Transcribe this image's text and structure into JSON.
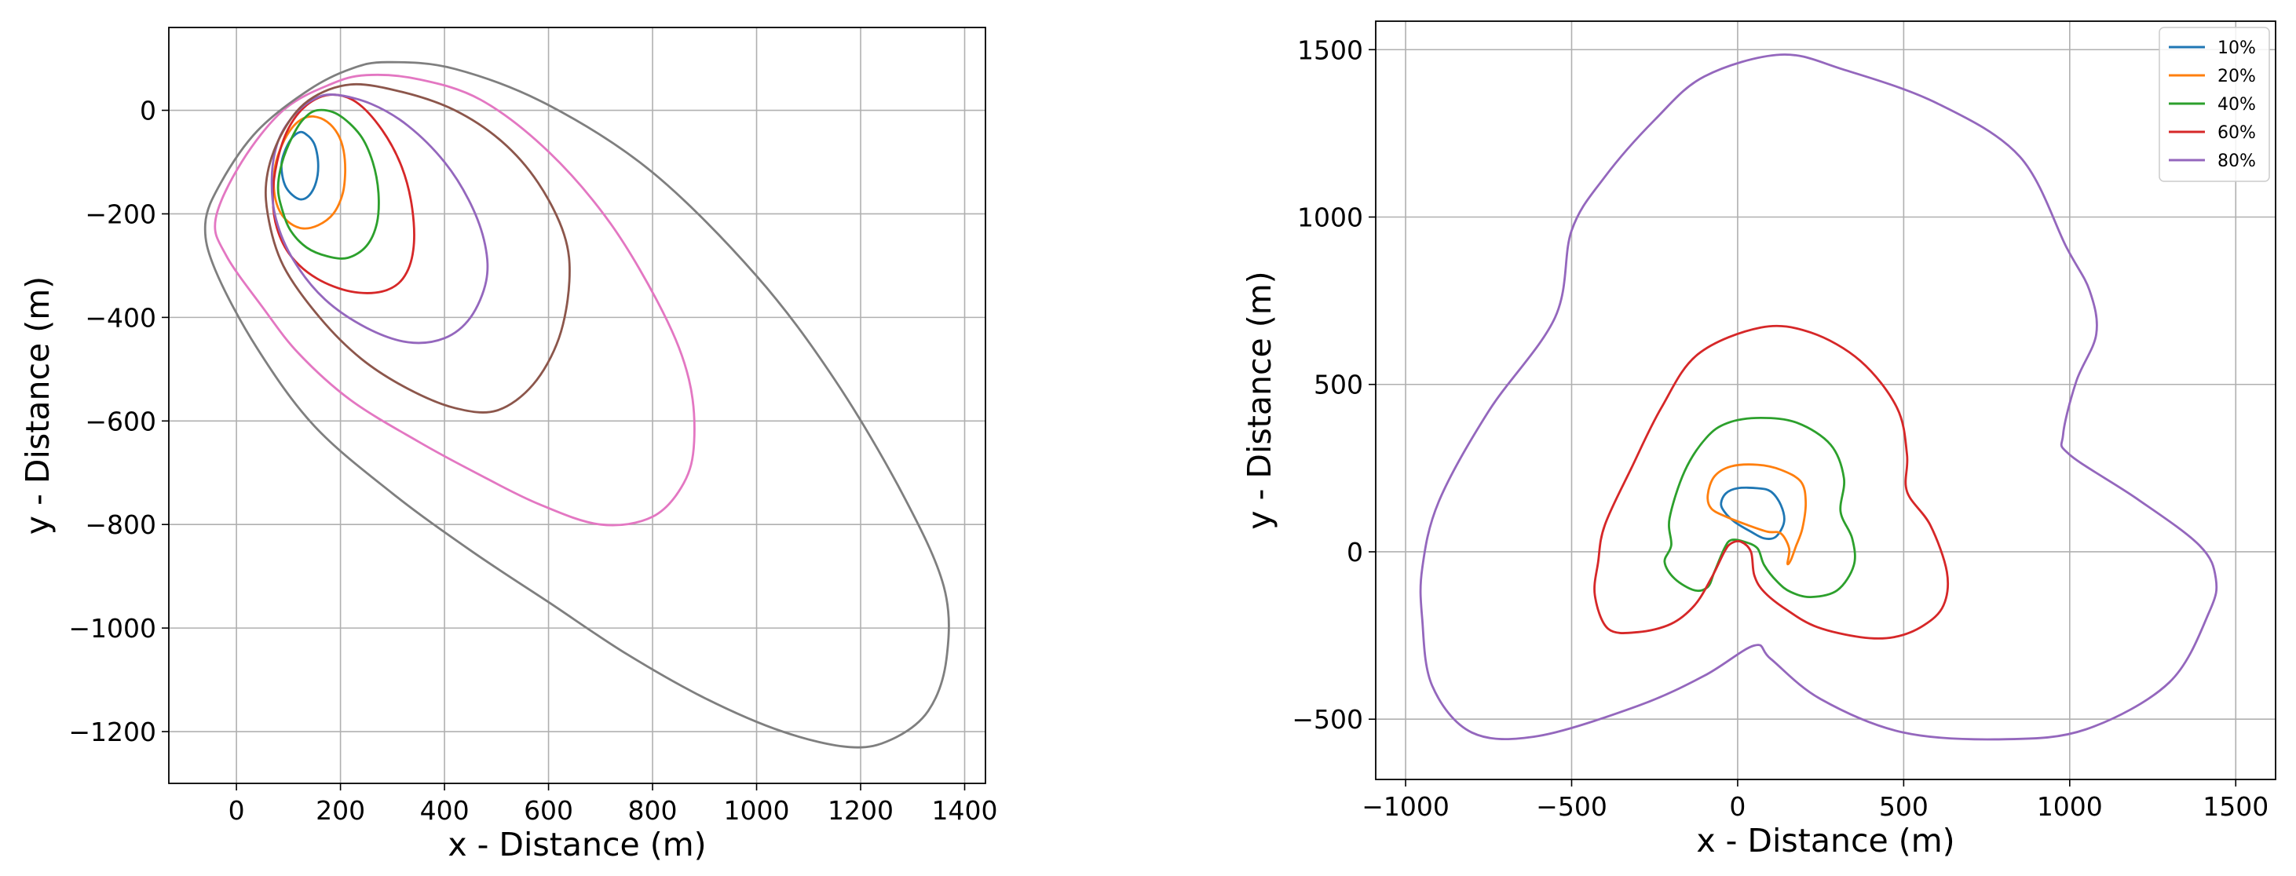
{
  "chart_data": [
    {
      "type": "line",
      "title": "",
      "xlabel": "x - Distance (m)",
      "ylabel": "y - Distance (m)",
      "xlim": [
        -130,
        1440
      ],
      "ylim": [
        -1300,
        160
      ],
      "xticks": [
        0,
        200,
        400,
        600,
        800,
        1000,
        1200,
        1400
      ],
      "yticks": [
        0,
        -200,
        -400,
        -600,
        -800,
        -1000,
        -1200
      ],
      "grid": true,
      "legend": "none",
      "series": [
        {
          "color": "#1f77b4",
          "x": [
            123,
            136,
            147,
            153,
            157,
            156,
            149,
            137,
            123,
            108,
            95,
            88,
            87,
            95,
            107,
            123
          ],
          "y": [
            -42,
            -48,
            -60,
            -75,
            -100,
            -125,
            -150,
            -167,
            -172,
            -164,
            -148,
            -125,
            -100,
            -74,
            -53,
            -42
          ]
        },
        {
          "color": "#ff7f0e",
          "x": [
            148,
            174,
            195,
            206,
            209,
            204,
            186,
            157,
            126,
            98,
            80,
            72,
            75,
            88,
            106,
            126,
            148
          ],
          "y": [
            -12,
            -22,
            -46,
            -78,
            -120,
            -162,
            -200,
            -222,
            -228,
            -214,
            -188,
            -150,
            -105,
            -66,
            -35,
            -17,
            -12
          ]
        },
        {
          "color": "#2ca02c",
          "x": [
            155,
            195,
            238,
            262,
            273,
            270,
            250,
            214,
            175,
            135,
            104,
            88,
            80,
            88,
            107,
            128,
            155
          ],
          "y": [
            0,
            -8,
            -48,
            -100,
            -160,
            -218,
            -262,
            -285,
            -282,
            -265,
            -232,
            -192,
            -150,
            -100,
            -52,
            -18,
            0
          ]
        },
        {
          "color": "#d62728",
          "x": [
            180,
            230,
            280,
            318,
            338,
            340,
            320,
            280,
            220,
            155,
            105,
            78,
            70,
            78,
            100,
            135,
            180
          ],
          "y": [
            30,
            16,
            -38,
            -110,
            -190,
            -270,
            -325,
            -350,
            -350,
            -325,
            -282,
            -228,
            -168,
            -100,
            -35,
            10,
            30
          ]
        },
        {
          "color": "#9467bd",
          "x": [
            190,
            260,
            330,
            400,
            450,
            478,
            480,
            450,
            400,
            330,
            250,
            170,
            110,
            76,
            68,
            80,
            110,
            150,
            190
          ],
          "y": [
            30,
            12,
            -30,
            -100,
            -180,
            -260,
            -330,
            -400,
            -440,
            -448,
            -420,
            -365,
            -290,
            -210,
            -130,
            -60,
            -10,
            22,
            30
          ]
        },
        {
          "color": "#8c564b",
          "x": [
            220,
            320,
            420,
            510,
            580,
            630,
            640,
            620,
            570,
            500,
            420,
            330,
            240,
            160,
            90,
            60,
            60,
            90,
            140,
            220
          ],
          "y": [
            50,
            35,
            0,
            -60,
            -140,
            -240,
            -330,
            -440,
            -530,
            -580,
            -575,
            -538,
            -480,
            -400,
            -300,
            -200,
            -120,
            -40,
            20,
            50
          ]
        },
        {
          "color": "#e377c2",
          "x": [
            250,
            350,
            470,
            600,
            720,
            820,
            870,
            880,
            860,
            800,
            700,
            580,
            460,
            350,
            220,
            120,
            50,
            -20,
            -40,
            10,
            90,
            180,
            250
          ],
          "y": [
            68,
            60,
            20,
            -80,
            -220,
            -390,
            -520,
            -640,
            -720,
            -785,
            -800,
            -760,
            -700,
            -640,
            -560,
            -470,
            -380,
            -280,
            -210,
            -100,
            0,
            50,
            68
          ]
        },
        {
          "color": "#7f7f7f",
          "x": [
            290,
            420,
            600,
            800,
            1000,
            1150,
            1280,
            1360,
            1365,
            1330,
            1260,
            1180,
            1050,
            900,
            750,
            600,
            450,
            300,
            150,
            40,
            -40,
            -60,
            -30,
            40,
            140,
            220,
            290
          ],
          "y": [
            93,
            80,
            10,
            -120,
            -320,
            -520,
            -740,
            -920,
            -1060,
            -1160,
            -1215,
            -1230,
            -1200,
            -1135,
            -1050,
            -950,
            -850,
            -740,
            -610,
            -460,
            -310,
            -220,
            -140,
            -40,
            40,
            80,
            93
          ]
        }
      ]
    },
    {
      "type": "line",
      "title": "",
      "xlabel": "x - Distance (m)",
      "ylabel": "y - Distance (m)",
      "xlim": [
        -1090,
        1620
      ],
      "ylim": [
        -680,
        1585
      ],
      "xticks": [
        -1000,
        -500,
        0,
        500,
        1000,
        1500
      ],
      "yticks": [
        1500,
        1000,
        500,
        0,
        -500
      ],
      "grid": true,
      "legend": "top-right",
      "series": [
        {
          "name": "10%",
          "color": "#1f77b4",
          "x": [
            60,
            100,
            130,
            140,
            115,
            80,
            40,
            -10,
            -40,
            -50,
            -35,
            0,
            60
          ],
          "y": [
            190,
            180,
            140,
            90,
            45,
            40,
            60,
            90,
            120,
            145,
            175,
            190,
            190
          ]
        },
        {
          "name": "20%",
          "color": "#ff7f0e",
          "x": [
            60,
            130,
            190,
            205,
            195,
            175,
            160,
            150,
            155,
            130,
            90,
            30,
            -35,
            -80,
            -90,
            -70,
            -20,
            60
          ],
          "y": [
            260,
            245,
            210,
            150,
            70,
            15,
            -25,
            -35,
            10,
            55,
            60,
            80,
            105,
            130,
            170,
            225,
            255,
            260
          ]
        },
        {
          "name": "40%",
          "color": "#2ca02c",
          "x": [
            70,
            180,
            280,
            320,
            310,
            345,
            350,
            300,
            220,
            160,
            120,
            80,
            60,
            20,
            -20,
            -40,
            -70,
            -90,
            -130,
            -190,
            -220,
            -200,
            -205,
            -160,
            -95,
            -30,
            70
          ],
          "y": [
            400,
            385,
            320,
            220,
            120,
            40,
            -40,
            -115,
            -135,
            -120,
            -90,
            -40,
            10,
            30,
            35,
            10,
            -60,
            -105,
            -115,
            -80,
            -30,
            20,
            100,
            240,
            340,
            385,
            400
          ]
        },
        {
          "name": "60%",
          "color": "#d62728",
          "x": [
            70,
            220,
            370,
            480,
            510,
            510,
            580,
            630,
            620,
            560,
            470,
            370,
            240,
            150,
            80,
            50,
            40,
            10,
            -20,
            -40,
            -80,
            -130,
            -200,
            -300,
            -390,
            -430,
            -420,
            -400,
            -320,
            -230,
            -120,
            70
          ],
          "y": [
            670,
            655,
            570,
            430,
            290,
            180,
            80,
            -60,
            -160,
            -220,
            -255,
            -255,
            -225,
            -175,
            -120,
            -70,
            0,
            30,
            25,
            0,
            -80,
            -160,
            -215,
            -240,
            -230,
            -130,
            -30,
            80,
            250,
            430,
            590,
            670
          ]
        },
        {
          "name": "80%",
          "color": "#9467bd",
          "x": [
            130,
            320,
            600,
            850,
            990,
            1060,
            1080,
            1020,
            980,
            1000,
            1200,
            1390,
            1440,
            1420,
            1300,
            1050,
            800,
            500,
            250,
            100,
            50,
            -100,
            -300,
            -600,
            -800,
            -920,
            -950,
            -950,
            -900,
            -750,
            -550,
            -500,
            -400,
            -250,
            -100,
            130
          ],
          "y": [
            1485,
            1440,
            1340,
            1180,
            910,
            780,
            650,
            510,
            350,
            290,
            160,
            20,
            -80,
            -180,
            -390,
            -530,
            -560,
            -540,
            -440,
            -320,
            -280,
            -370,
            -460,
            -550,
            -540,
            -400,
            -200,
            -50,
            150,
            420,
            700,
            960,
            1120,
            1290,
            1420,
            1485
          ]
        }
      ]
    }
  ]
}
